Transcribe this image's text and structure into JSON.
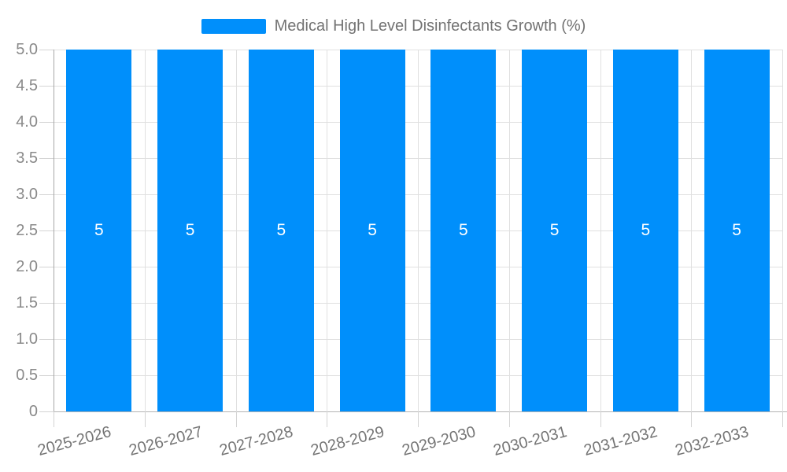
{
  "chart_data": {
    "type": "bar",
    "legend": {
      "position": "top",
      "label": "Medical High Level Disinfectants Growth (%)"
    },
    "categories": [
      "2025-2026",
      "2026-2027",
      "2027-2028",
      "2028-2029",
      "2029-2030",
      "2030-2031",
      "2031-2032",
      "2032-2033"
    ],
    "series": [
      {
        "name": "Medical High Level Disinfectants Growth (%)",
        "values": [
          5,
          5,
          5,
          5,
          5,
          5,
          5,
          5
        ]
      }
    ],
    "data_labels": [
      "5",
      "5",
      "5",
      "5",
      "5",
      "5",
      "5",
      "5"
    ],
    "yaxis": {
      "min": 0,
      "max": 5,
      "step": 0.5,
      "tick_labels": [
        "5.0",
        "4.5",
        "4.0",
        "3.5",
        "3.0",
        "2.5",
        "2.0",
        "1.5",
        "1.0",
        "0.5",
        "0"
      ]
    },
    "grid": {
      "horizontal": true,
      "vertical": true
    },
    "xlabel": "",
    "ylabel": "",
    "colors": {
      "bar": "#008FFB",
      "grid": "#e0e0e0",
      "axis_line": "#a8a8a8",
      "x_axis_line": "#b3b3b3",
      "tick": "#d4d4d4",
      "y_label": "#8a8a8a",
      "x_label": "#757575",
      "legend_text": "#737373",
      "data_label": "#ffffff",
      "background": "#ffffff"
    }
  }
}
